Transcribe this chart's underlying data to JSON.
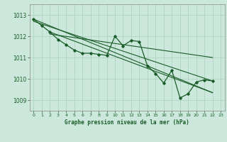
{
  "title": "Graphe pression niveau de la mer (hPa)",
  "bg_color": "#cce8dc",
  "grid_color": "#aacfbf",
  "line_color": "#1a5c28",
  "marker_color": "#1a5c28",
  "xlim": [
    -0.5,
    23.5
  ],
  "ylim": [
    1008.5,
    1013.5
  ],
  "yticks": [
    1009,
    1010,
    1011,
    1012,
    1013
  ],
  "xticks": [
    0,
    1,
    2,
    3,
    4,
    5,
    6,
    7,
    8,
    9,
    10,
    11,
    12,
    13,
    14,
    15,
    16,
    17,
    18,
    19,
    20,
    21,
    22,
    23
  ],
  "series1_x": [
    0,
    1,
    2,
    3,
    4,
    5,
    6,
    7,
    8,
    9,
    10,
    11,
    12,
    13,
    14,
    15,
    16,
    17,
    18,
    19,
    20,
    21,
    22
  ],
  "series1_y": [
    1012.8,
    1012.5,
    1012.2,
    1011.85,
    1011.6,
    1011.35,
    1011.2,
    1011.2,
    1011.15,
    1011.1,
    1012.0,
    1011.55,
    1011.8,
    1011.75,
    1010.6,
    1010.25,
    1009.8,
    1010.4,
    1009.1,
    1009.3,
    1009.85,
    1009.95,
    1009.9
  ],
  "trend1_x": [
    0,
    22
  ],
  "trend1_y": [
    1012.8,
    1009.35
  ],
  "trend2_x": [
    0,
    22
  ],
  "trend2_y": [
    1012.7,
    1009.9
  ],
  "trend3_x": [
    2,
    22
  ],
  "trend3_y": [
    1012.2,
    1009.35
  ],
  "trend4_x": [
    2,
    22
  ],
  "trend4_y": [
    1012.1,
    1011.0
  ]
}
